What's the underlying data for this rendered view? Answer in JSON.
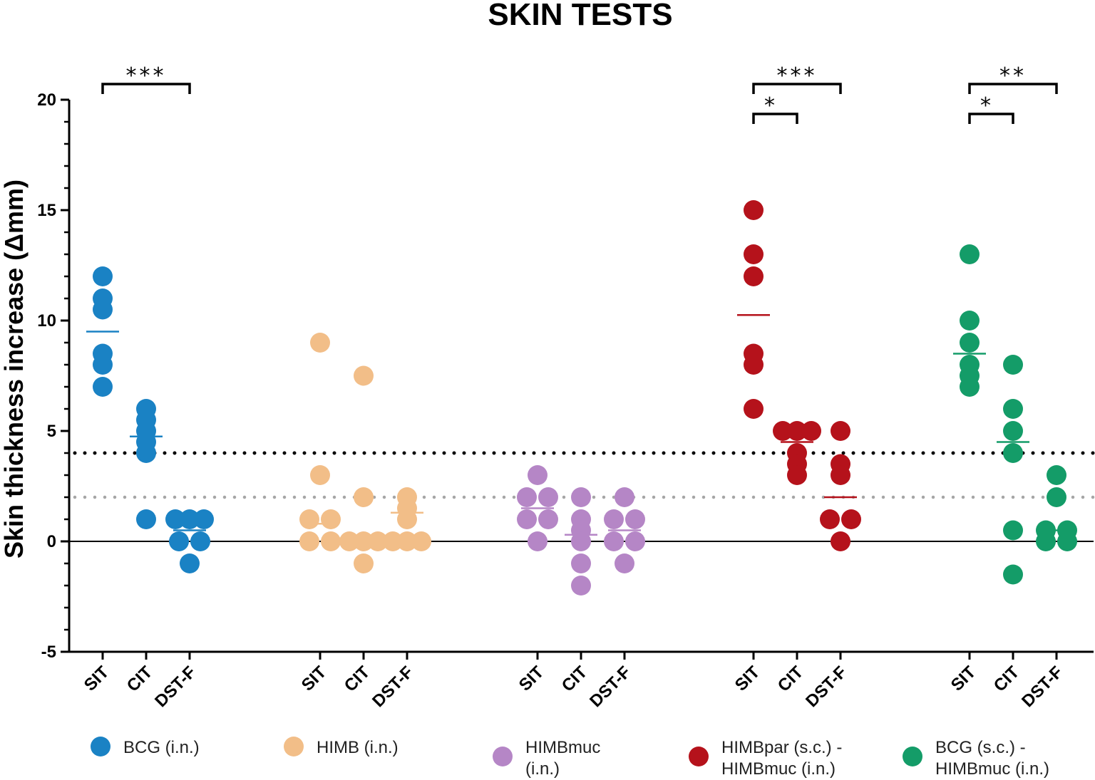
{
  "chart_data": {
    "type": "scatter",
    "title": "SKIN TESTS",
    "ylabel": "Skin thickness increase (Δmm)",
    "xlabel": "",
    "ylim": [
      -5,
      20
    ],
    "yticks": [
      -5,
      0,
      5,
      10,
      15,
      20
    ],
    "reference_lines": [
      {
        "value": 4,
        "color": "#000000",
        "style": "dotted"
      },
      {
        "value": 2,
        "color": "#a6a6a6",
        "style": "dotted"
      },
      {
        "value": 0,
        "color": "#000000",
        "style": "solid"
      }
    ],
    "categories": [
      "SIT",
      "CIT",
      "DST-F"
    ],
    "groups": [
      {
        "name": "BCG (i.n.)",
        "legend_lines": [
          "BCG (i.n.)"
        ],
        "color": "#1a82c4",
        "series": [
          {
            "test": "SIT",
            "values": [
              12,
              11,
              10.5,
              8.5,
              8,
              7
            ],
            "mean": 9.5
          },
          {
            "test": "CIT",
            "values": [
              6,
              5.5,
              5,
              4.5,
              4,
              1
            ],
            "mean": 4.75
          },
          {
            "test": "DST-F",
            "values": [
              1,
              1,
              1,
              0,
              0,
              -1
            ],
            "mean": 0.5
          }
        ]
      },
      {
        "name": "HIMB (i.n.)",
        "legend_lines": [
          "HIMB (i.n.)"
        ],
        "color": "#f2be88",
        "series": [
          {
            "test": "SIT",
            "values": [
              9,
              3,
              1,
              1,
              0,
              0
            ],
            "mean": 0.8
          },
          {
            "test": "CIT",
            "values": [
              7.5,
              2,
              0,
              0,
              0,
              -1
            ],
            "mean": 0
          },
          {
            "test": "DST-F",
            "values": [
              2,
              1.5,
              1,
              0,
              0,
              0
            ],
            "mean": 1.3
          }
        ]
      },
      {
        "name": "HIMBmuc (i.n.)",
        "legend_lines": [
          "HIMBmuc",
          "(i.n.)"
        ],
        "color": "#b586c6",
        "series": [
          {
            "test": "SIT",
            "values": [
              3,
              2,
              2,
              1,
              1,
              0
            ],
            "mean": 1.5
          },
          {
            "test": "CIT",
            "values": [
              2,
              1,
              0.5,
              0,
              -1,
              -2
            ],
            "mean": 0.3
          },
          {
            "test": "DST-F",
            "values": [
              2,
              1,
              1,
              0,
              0,
              -1
            ],
            "mean": 0.5
          }
        ]
      },
      {
        "name": "HIMBpar (s.c.) - HIMBmuc (i.n.)",
        "legend_lines": [
          "HIMBpar (s.c.) -",
          "HIMBmuc (i.n.)"
        ],
        "color": "#b5121b",
        "series": [
          {
            "test": "SIT",
            "values": [
              15,
              13,
              12,
              8.5,
              8,
              6
            ],
            "mean": 10.25
          },
          {
            "test": "CIT",
            "values": [
              5,
              5,
              5,
              4,
              3.5,
              3
            ],
            "mean": 4.5
          },
          {
            "test": "DST-F",
            "values": [
              5,
              3.5,
              3,
              1,
              1,
              0
            ],
            "mean": 2
          }
        ]
      },
      {
        "name": "BCG (s.c.) - HIMBmuc (i.n.)",
        "legend_lines": [
          "BCG (s.c.) -",
          "HIMBmuc (i.n.)"
        ],
        "color": "#149c68",
        "series": [
          {
            "test": "SIT",
            "values": [
              13,
              10,
              9,
              8,
              7.5,
              7
            ],
            "mean": 8.5
          },
          {
            "test": "CIT",
            "values": [
              8,
              6,
              5,
              4,
              0.5,
              -1.5
            ],
            "mean": 4.5
          },
          {
            "test": "DST-F",
            "values": [
              3,
              2,
              0.5,
              0.5,
              0,
              0
            ],
            "mean": 0.5
          }
        ]
      }
    ],
    "significance": [
      {
        "group": "BCG (i.n.)",
        "from": "SIT",
        "to": "DST-F",
        "label": "***",
        "level": 1
      },
      {
        "group": "HIMBpar (s.c.) - HIMBmuc (i.n.)",
        "from": "SIT",
        "to": "DST-F",
        "label": "***",
        "level": 1
      },
      {
        "group": "HIMBpar (s.c.) - HIMBmuc (i.n.)",
        "from": "SIT",
        "to": "CIT",
        "label": "*",
        "level": 0
      },
      {
        "group": "BCG (s.c.) - HIMBmuc (i.n.)",
        "from": "SIT",
        "to": "DST-F",
        "label": "**",
        "level": 1
      },
      {
        "group": "BCG (s.c.) - HIMBmuc (i.n.)",
        "from": "SIT",
        "to": "CIT",
        "label": "*",
        "level": 0
      }
    ]
  }
}
